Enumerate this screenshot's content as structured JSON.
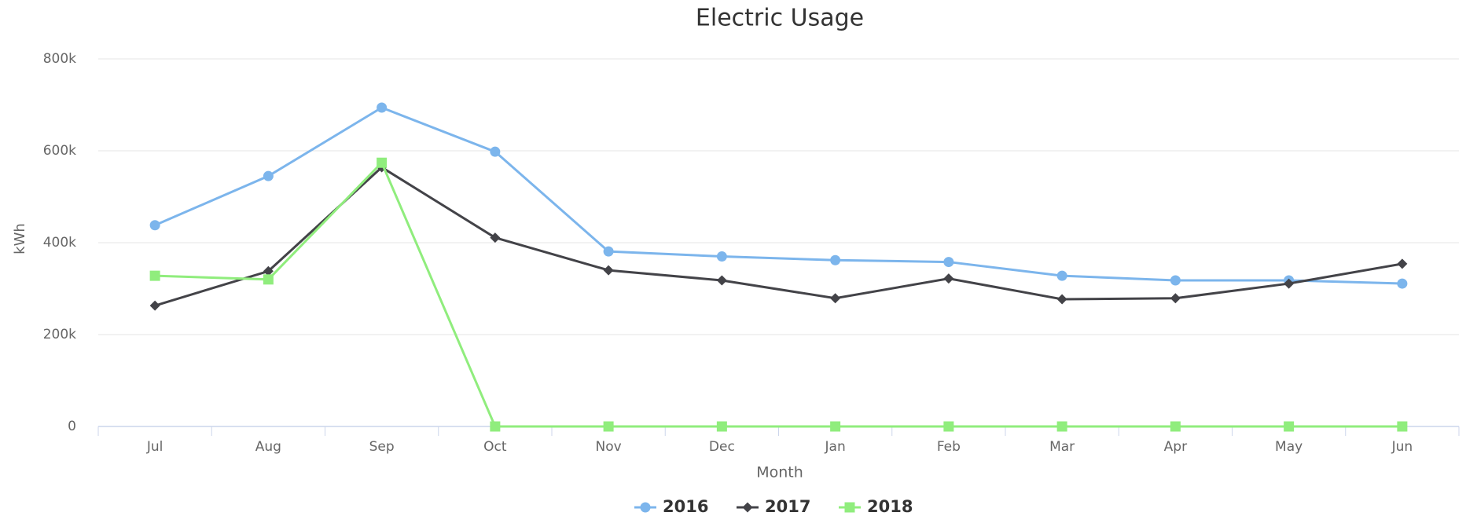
{
  "chart_data": {
    "type": "line",
    "title": "Electric Usage",
    "x_label": "Month",
    "y_label": "kWh",
    "categories": [
      "Jul",
      "Aug",
      "Sep",
      "Oct",
      "Nov",
      "Dec",
      "Jan",
      "Feb",
      "Mar",
      "Apr",
      "May",
      "Jun"
    ],
    "series": [
      {
        "name": "2016",
        "color": "#7cb5ec",
        "marker": "circle",
        "values": [
          438000,
          545000,
          694000,
          598000,
          381000,
          370000,
          362000,
          358000,
          328000,
          318000,
          318000,
          311000
        ]
      },
      {
        "name": "2017",
        "color": "#434348",
        "marker": "diamond",
        "values": [
          263000,
          338000,
          564000,
          411000,
          340000,
          318000,
          279000,
          322000,
          277000,
          279000,
          311000,
          354000
        ]
      },
      {
        "name": "2018",
        "color": "#90ed7d",
        "marker": "square",
        "values": [
          328000,
          320000,
          574000,
          0,
          0,
          0,
          0,
          0,
          0,
          0,
          0,
          0
        ]
      }
    ],
    "ylim": [
      0,
      800000
    ],
    "yticks": [
      0,
      {
        "value": 200000,
        "label": "200k"
      },
      {
        "value": 400000,
        "label": "400k"
      },
      {
        "value": 600000,
        "label": "600k"
      },
      {
        "value": 800000,
        "label": "800k"
      }
    ],
    "grid": true,
    "legend": "bottom"
  }
}
